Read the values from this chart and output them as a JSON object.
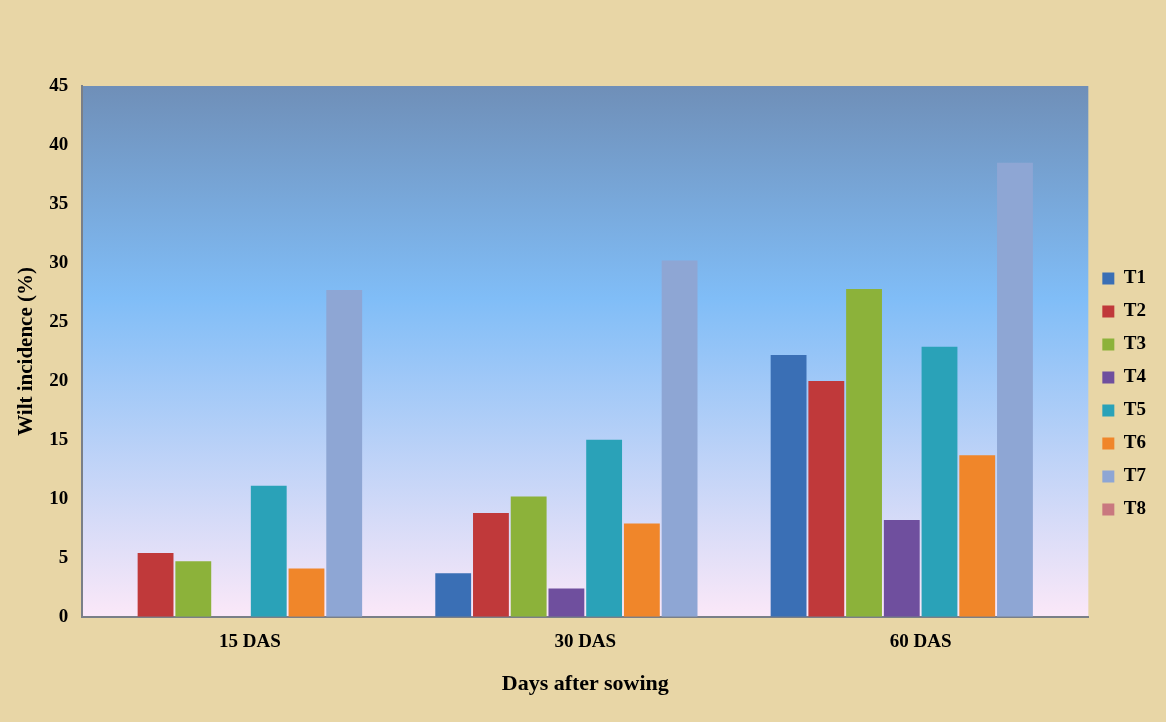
{
  "chart_data": {
    "type": "bar",
    "xlabel": "Days after sowing",
    "ylabel": "Wilt incidence (%)",
    "categories": [
      "15 DAS",
      "30 DAS",
      "60 DAS"
    ],
    "ylim": [
      0,
      45
    ],
    "yticks": [
      0,
      5,
      10,
      15,
      20,
      25,
      30,
      35,
      40,
      45
    ],
    "grid": false,
    "legend": "right",
    "series": [
      {
        "name": "T1",
        "color": "#3a6fb5",
        "values": [
          0,
          3.7,
          22.2
        ]
      },
      {
        "name": "T2",
        "color": "#c0393a",
        "values": [
          5.4,
          8.8,
          20.0
        ]
      },
      {
        "name": "T3",
        "color": "#8cb23a",
        "values": [
          4.7,
          10.2,
          27.8
        ]
      },
      {
        "name": "T4",
        "color": "#6f4f9e",
        "values": [
          0,
          2.4,
          8.2
        ]
      },
      {
        "name": "T5",
        "color": "#2aa2b8",
        "values": [
          11.1,
          15.0,
          22.9
        ]
      },
      {
        "name": "T6",
        "color": "#f0862a",
        "values": [
          4.1,
          7.9,
          13.7
        ]
      },
      {
        "name": "T7",
        "color": "#8ea6d4",
        "values": [
          27.7,
          30.2,
          38.5
        ]
      },
      {
        "name": "T8",
        "color": "#c9787f",
        "values": [
          0,
          0,
          0
        ]
      }
    ]
  }
}
